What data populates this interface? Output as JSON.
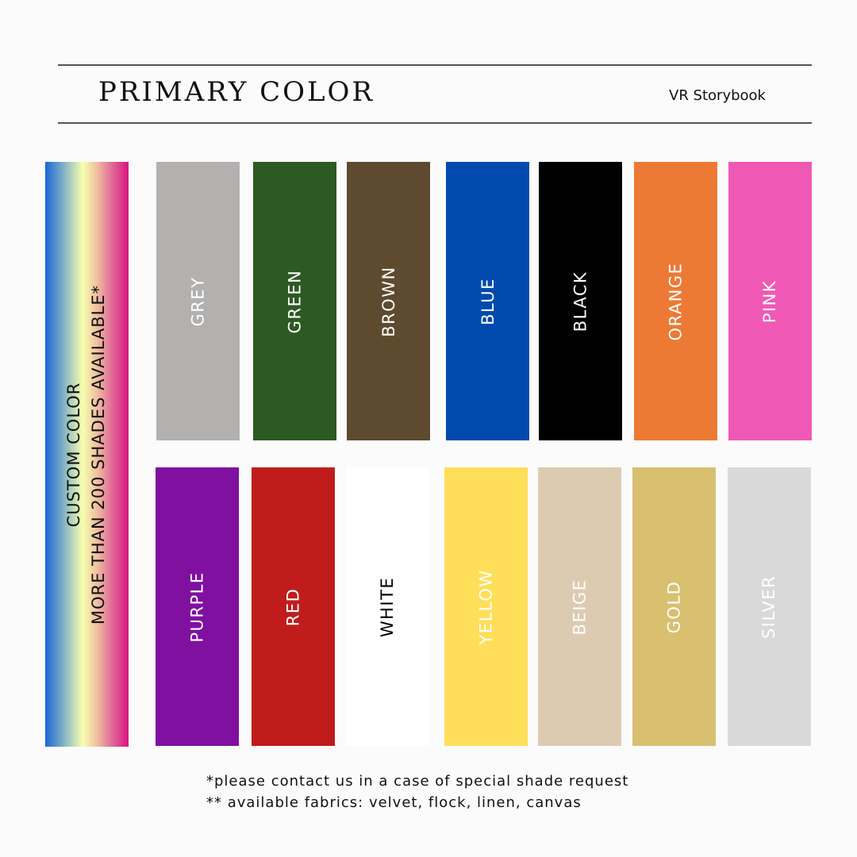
{
  "header": {
    "title": "PRIMARY COLOR",
    "brand": "VR Storybook"
  },
  "custom": {
    "line1": "CUSTOM COLOR",
    "line2": "MORE THAN 200 SHADES AVAILABLE*"
  },
  "swatches": [
    {
      "label": "GREY",
      "color": "#b3b1b0",
      "text": "#ffffff"
    },
    {
      "label": "GREEN",
      "color": "#2c5a22",
      "text": "#ffffff"
    },
    {
      "label": "BROWN",
      "color": "#5e4a2e",
      "text": "#ffffff"
    },
    {
      "label": "BLUE",
      "color": "#004aad",
      "text": "#ffffff"
    },
    {
      "label": "BLACK",
      "color": "#000000",
      "text": "#ffffff"
    },
    {
      "label": "ORANGE",
      "color": "#ec7a35",
      "text": "#ffffff"
    },
    {
      "label": "PINK",
      "color": "#f058b5",
      "text": "#ffffff"
    },
    {
      "label": "PURPLE",
      "color": "#8010a0",
      "text": "#ffffff"
    },
    {
      "label": "RED",
      "color": "#c01c1c",
      "text": "#ffffff"
    },
    {
      "label": "WHITE",
      "color": "#ffffff",
      "text": "#000000"
    },
    {
      "label": "YELLOW",
      "color": "#ffde59",
      "text": "#ffffff"
    },
    {
      "label": "BEIGE",
      "color": "#ddcbb1",
      "text": "#ffffff"
    },
    {
      "label": "GOLD",
      "color": "#d8c070",
      "text": "#ffffff"
    },
    {
      "label": "SILVER",
      "color": "#d9d9d9",
      "text": "#ffffff"
    }
  ],
  "notes": [
    "*please contact us in a case of special shade request",
    "** available fabrics: velvet, flock, linen, canvas"
  ]
}
